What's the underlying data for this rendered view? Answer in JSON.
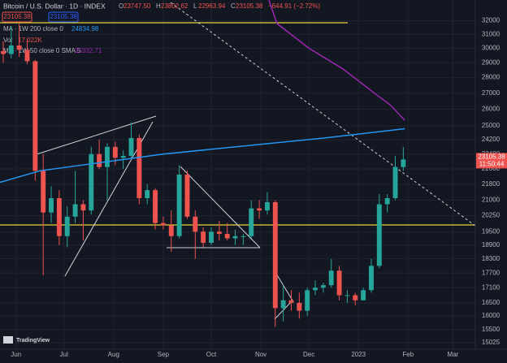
{
  "header": {
    "title": "Bitcoin / U.S. Dollar · 1D · INDEX",
    "ohlc": [
      {
        "key": "O",
        "value": "23747.50"
      },
      {
        "key": "H",
        "value": "23802.62"
      },
      {
        "key": "L",
        "value": "22963.94"
      },
      {
        "key": "C",
        "value": "23105.38"
      }
    ],
    "change": "−644.91 (−2.72%)",
    "vol_name": "Vol",
    "vol_value": "17.022K",
    "countdown": "11:50:44",
    "logo": "TradingView"
  },
  "chart_data": {
    "type": "candlestick",
    "title": "Bitcoin / U.S. Dollar · 1D · INDEX",
    "log": true,
    "grid": true,
    "up_color": "#26a69a",
    "down_color": "#ef5350",
    "x": [
      -8,
      -3,
      2,
      7,
      12,
      17,
      22,
      27,
      32,
      37,
      42,
      47,
      52,
      57,
      62,
      67,
      72,
      77,
      82,
      87,
      92,
      97,
      102,
      107,
      112,
      117,
      122,
      127,
      132,
      137,
      142,
      147,
      152,
      157,
      162,
      167,
      172,
      177,
      182,
      187,
      192,
      197,
      202,
      207,
      212,
      217,
      222,
      227,
      232,
      237,
      242
    ],
    "open": [
      29800,
      29600,
      30200,
      29900,
      29100,
      22500,
      20400,
      21100,
      19300,
      20200,
      20800,
      20500,
      23400,
      22700,
      23800,
      23200,
      23300,
      24300,
      21100,
      21500,
      19900,
      19800,
      19300,
      22300,
      20200,
      19500,
      19000,
      19500,
      19400,
      19200,
      19300,
      19300,
      20600,
      20500,
      20900,
      16300,
      16600,
      16500,
      16200,
      17000,
      17100,
      17200,
      17800,
      16800,
      16800,
      16600,
      17000,
      18000,
      20800,
      21100,
      22700
    ],
    "high": [
      30500,
      31600,
      31800,
      30700,
      29200,
      23400,
      21700,
      21500,
      20700,
      22500,
      21000,
      23800,
      24200,
      24000,
      24100,
      23600,
      25200,
      24500,
      21800,
      21600,
      20200,
      20500,
      22800,
      22500,
      20500,
      19700,
      19700,
      20000,
      19900,
      19600,
      19400,
      21000,
      21000,
      21400,
      21000,
      17200,
      17000,
      16900,
      17100,
      17400,
      17300,
      18300,
      18000,
      17000,
      16900,
      17100,
      18300,
      21300,
      21300,
      23300,
      23800
    ],
    "low": [
      29000,
      29300,
      29400,
      28900,
      22000,
      17600,
      19900,
      18900,
      18800,
      19900,
      19100,
      20300,
      22600,
      21000,
      22800,
      22600,
      23100,
      20800,
      20800,
      19600,
      19600,
      18600,
      19200,
      20100,
      18300,
      18800,
      18900,
      19100,
      19100,
      18900,
      18900,
      19200,
      20100,
      20300,
      15600,
      15800,
      16200,
      15900,
      16000,
      16800,
      16900,
      17100,
      16600,
      16500,
      16400,
      16600,
      16900,
      17900,
      20400,
      21000,
      22500
    ],
    "close": [
      29600,
      30200,
      29900,
      29100,
      22500,
      20400,
      21100,
      19300,
      20200,
      20800,
      20500,
      23400,
      22700,
      23800,
      23200,
      23300,
      24300,
      21100,
      21500,
      19900,
      19800,
      19300,
      22300,
      20200,
      19500,
      19000,
      19500,
      19400,
      19200,
      19300,
      19300,
      20600,
      20500,
      20900,
      16300,
      16600,
      16500,
      16200,
      17000,
      17100,
      17200,
      17800,
      16800,
      16800,
      16600,
      17000,
      18000,
      20800,
      21100,
      22700,
      23105.38
    ],
    "overlays": [
      {
        "name": "MA · 1W 200 close 0",
        "color": "#2196f3",
        "x": [
          -10,
          15,
          92,
          193,
          243
        ],
        "values": [
          21900,
          22500,
          23400,
          24300,
          24834.98
        ]
      },
      {
        "name": "MA · 1W 50 close 0 SMA 5",
        "color": "#9c27b0",
        "x": [
          158,
          163,
          183,
          204,
          224,
          234,
          243
        ],
        "values": [
          33600,
          31800,
          30000,
          28600,
          27000,
          26250,
          25332.71
        ]
      }
    ],
    "ylim": [
      14800,
      33600
    ],
    "yticks": [
      32000,
      31000,
      30000,
      29000,
      28000,
      27000,
      26000,
      25000,
      24200,
      23400,
      22600,
      21800,
      21000,
      20250,
      19500,
      18900,
      18300,
      17700,
      17100,
      16500,
      16000,
      15500,
      15025
    ],
    "xlim": [
      -10,
      287
    ],
    "xticks": [
      {
        "value": 0,
        "label": "Jun"
      },
      {
        "value": 30,
        "label": "Jul"
      },
      {
        "value": 61,
        "label": "Aug"
      },
      {
        "value": 92,
        "label": "Sep"
      },
      {
        "value": 122,
        "label": "Oct"
      },
      {
        "value": 153,
        "label": "Nov"
      },
      {
        "value": 183,
        "label": "Dec"
      },
      {
        "value": 214,
        "label": "2023"
      },
      {
        "value": 245,
        "label": "Feb"
      },
      {
        "value": 273,
        "label": "Mar"
      }
    ]
  }
}
